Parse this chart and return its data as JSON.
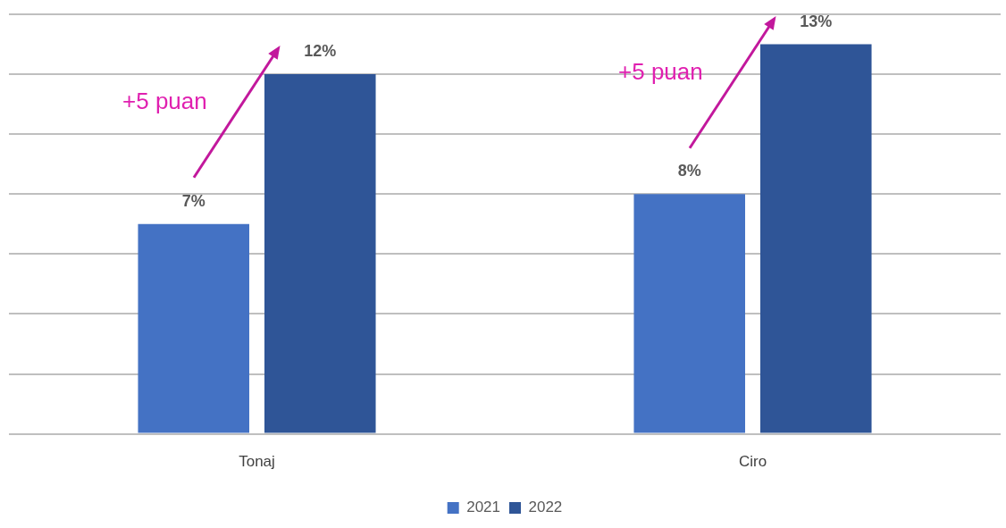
{
  "chart_data": {
    "type": "bar",
    "categories": [
      "Tonaj",
      "Ciro"
    ],
    "series": [
      {
        "name": "2021",
        "color": "#4472c4",
        "values": [
          7,
          8
        ],
        "value_labels": [
          "7%",
          "8%"
        ]
      },
      {
        "name": "2022",
        "color": "#2f5597",
        "values": [
          12,
          13
        ],
        "value_labels": [
          "12%",
          "13%"
        ]
      }
    ],
    "ylim": [
      0,
      14
    ],
    "yticks": [
      {
        "value": 0,
        "label": null
      },
      {
        "value": 2,
        "label": null
      },
      {
        "value": 4,
        "label": null
      },
      {
        "value": 6,
        "label": null
      },
      {
        "value": 8,
        "label": null
      },
      {
        "value": 10,
        "label": null
      },
      {
        "value": 12,
        "label": null
      },
      {
        "value": 14,
        "label": null
      }
    ],
    "tick_labels": "x",
    "grid": "y",
    "legend": "bottom",
    "annotations": [
      "+5 puan",
      "+5 puan"
    ]
  }
}
